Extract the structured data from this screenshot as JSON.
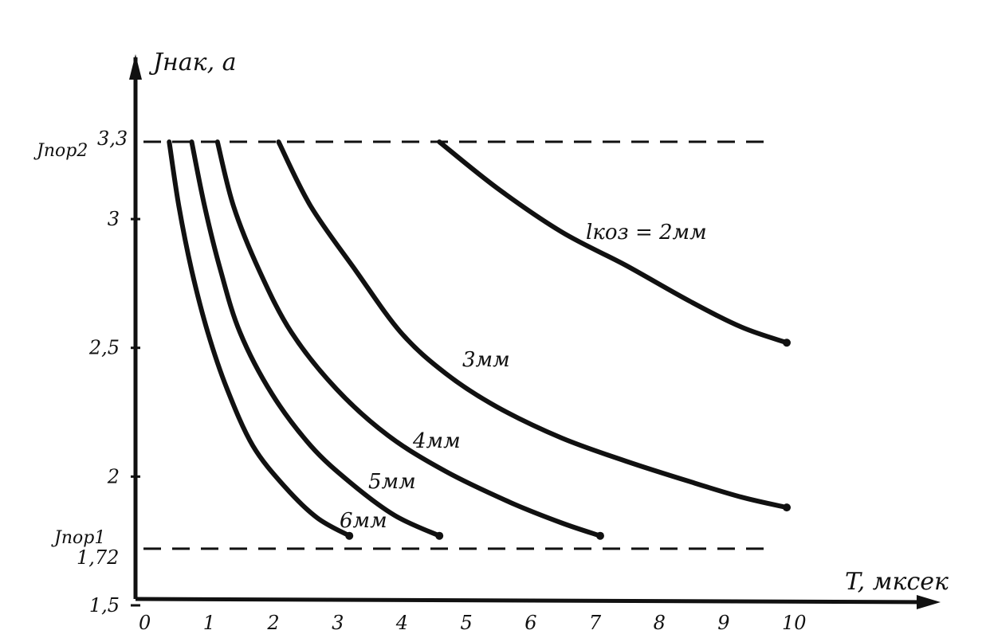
{
  "chart_data": {
    "type": "line",
    "xlabel": "T, мксек",
    "ylabel": "Jнак, а",
    "xlim": [
      0,
      10
    ],
    "ylim": [
      1.5,
      3.3
    ],
    "x_ticks": [
      "0",
      "1",
      "2",
      "3",
      "4",
      "5",
      "6",
      "7",
      "8",
      "9",
      "10"
    ],
    "y_ticks": [
      {
        "value": 1.5,
        "label": "1,5"
      },
      {
        "value": 2,
        "label": "2"
      },
      {
        "value": 2.5,
        "label": "2,5"
      },
      {
        "value": 3,
        "label": "3"
      }
    ],
    "reference_lines": [
      {
        "value": 3.3,
        "label": "Jпор2",
        "value_label": "3,3"
      },
      {
        "value": 1.72,
        "label": "Jпор1",
        "value_label": "1,72"
      }
    ],
    "series": [
      {
        "name": "lкоз = 2мм",
        "points": [
          [
            4.6,
            3.3
          ],
          [
            5.5,
            3.12
          ],
          [
            6.5,
            2.95
          ],
          [
            7.5,
            2.82
          ],
          [
            8.5,
            2.68
          ],
          [
            9.3,
            2.58
          ],
          [
            10.0,
            2.52
          ]
        ]
      },
      {
        "name": "3мм",
        "points": [
          [
            2.1,
            3.3
          ],
          [
            2.6,
            3.05
          ],
          [
            3.3,
            2.8
          ],
          [
            4.0,
            2.56
          ],
          [
            4.7,
            2.4
          ],
          [
            5.5,
            2.27
          ],
          [
            6.5,
            2.15
          ],
          [
            7.5,
            2.06
          ],
          [
            8.5,
            1.98
          ],
          [
            9.3,
            1.92
          ],
          [
            10.0,
            1.88
          ]
        ]
      },
      {
        "name": "4мм",
        "points": [
          [
            1.15,
            3.3
          ],
          [
            1.4,
            3.05
          ],
          [
            1.8,
            2.8
          ],
          [
            2.3,
            2.56
          ],
          [
            3.0,
            2.34
          ],
          [
            3.8,
            2.16
          ],
          [
            4.7,
            2.02
          ],
          [
            5.7,
            1.9
          ],
          [
            6.5,
            1.82
          ],
          [
            7.1,
            1.77
          ]
        ]
      },
      {
        "name": "5мм",
        "points": [
          [
            0.75,
            3.3
          ],
          [
            0.95,
            3.05
          ],
          [
            1.2,
            2.8
          ],
          [
            1.5,
            2.56
          ],
          [
            2.0,
            2.32
          ],
          [
            2.6,
            2.12
          ],
          [
            3.2,
            1.98
          ],
          [
            3.9,
            1.85
          ],
          [
            4.6,
            1.77
          ]
        ]
      },
      {
        "name": "6мм",
        "points": [
          [
            0.4,
            3.3
          ],
          [
            0.55,
            3.05
          ],
          [
            0.75,
            2.8
          ],
          [
            1.0,
            2.56
          ],
          [
            1.3,
            2.34
          ],
          [
            1.7,
            2.12
          ],
          [
            2.2,
            1.96
          ],
          [
            2.7,
            1.84
          ],
          [
            3.2,
            1.77
          ]
        ]
      }
    ]
  }
}
